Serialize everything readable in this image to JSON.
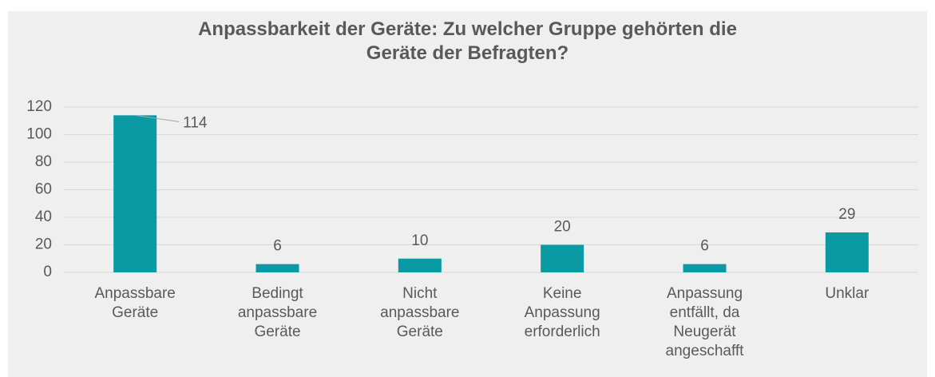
{
  "chart_data": {
    "type": "bar",
    "title": "Anpassbarkeit der Geräte: Zu welcher Gruppe gehörten die\nGeräte der Befragten?",
    "categories": [
      "Anpassbare\nGeräte",
      "Bedingt\nanpassbare\nGeräte",
      "Nicht\nanpassbare\nGeräte",
      "Keine\nAnpassung\nerforderlich",
      "Anpassung\nentfällt, da\nNeugerät\nangeschafft",
      "Unklar"
    ],
    "values": [
      114,
      6,
      10,
      20,
      6,
      29
    ],
    "color": "#0a9aa4",
    "ylim": [
      0,
      120
    ],
    "yticks": [
      0,
      20,
      40,
      60,
      80,
      100,
      120
    ],
    "grid": true
  }
}
